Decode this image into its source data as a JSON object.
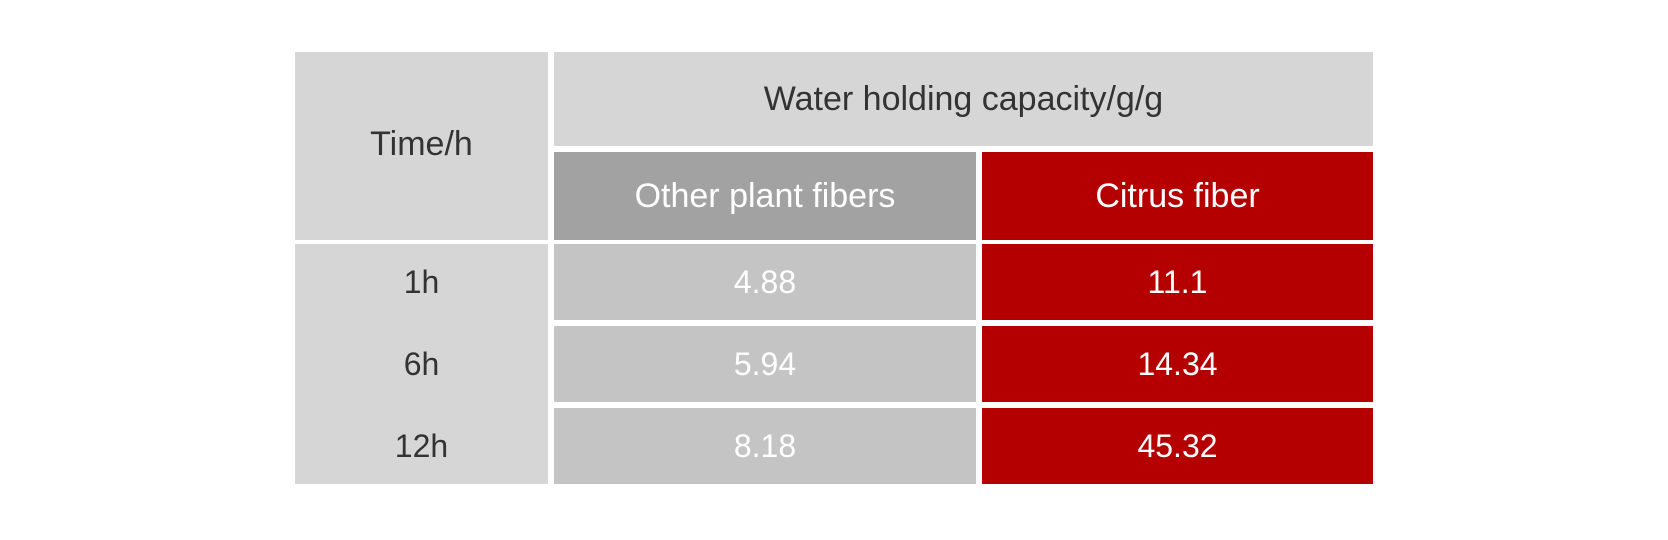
{
  "chart_data": {
    "type": "table",
    "title": "",
    "header": {
      "row_label": "Time/h",
      "group_label": "Water holding capacity/g/g",
      "columns": [
        "Other plant fibers",
        "Citrus fiber"
      ]
    },
    "rows": [
      {
        "time": "1h",
        "other": "4.88",
        "citrus": "11.1"
      },
      {
        "time": "6h",
        "other": "5.94",
        "citrus": "14.34"
      },
      {
        "time": "12h",
        "other": "8.18",
        "citrus": "45.32"
      }
    ],
    "colors": {
      "header_grey": "#d6d6d6",
      "other_header": "#a2a2a2",
      "other_cells": "#c4c4c4",
      "citrus": "#b50000",
      "dark_text": "#333333",
      "light_text": "#ffffff"
    }
  }
}
